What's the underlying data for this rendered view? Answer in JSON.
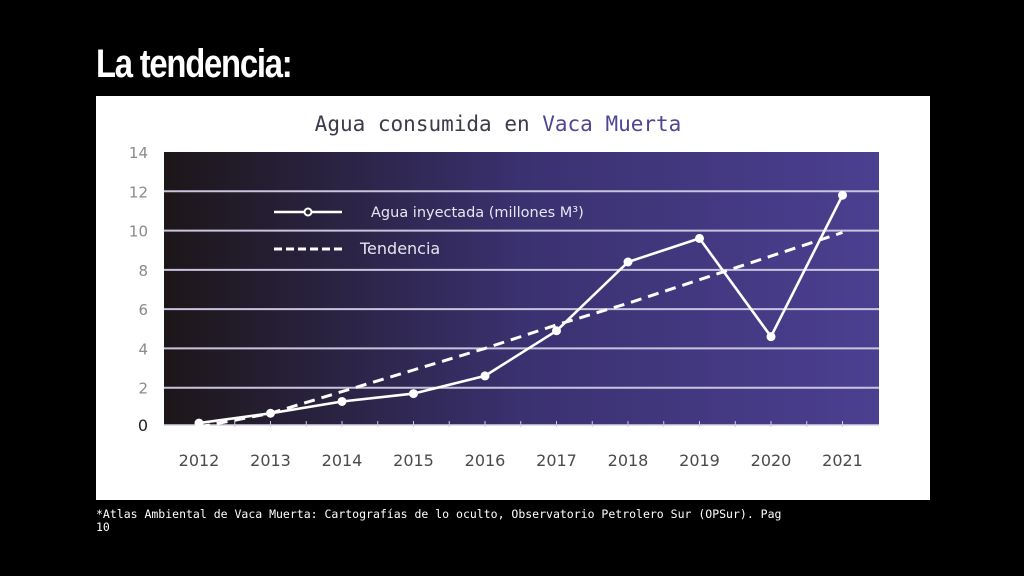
{
  "slide": {
    "title": "La tendencia:",
    "footnote": "*Atlas Ambiental de Vaca Muerta: Cartografías de lo oculto, Observatorio Petrolero Sur (OPSur). Pag\n10"
  },
  "colors": {
    "plot_gradient_start": "#1c1618",
    "plot_gradient_end": "#4b3f90",
    "line": "#ffffff",
    "grid": "#c9c4de",
    "title_dark": "#3d3a4a",
    "title_accent": "#4f4694",
    "tick_text": "#4a4a4a"
  },
  "chart_data": {
    "type": "line",
    "title": "Agua consumida en Vaca Muerta",
    "xlabel": "",
    "ylabel": "",
    "categories": [
      "2012",
      "2013",
      "2014",
      "2015",
      "2016",
      "2017",
      "2018",
      "2019",
      "2020",
      "2021"
    ],
    "series": [
      {
        "name": "Agua inyectada (millones M³)",
        "style": "solid-with-markers",
        "values": [
          0.2,
          0.7,
          1.3,
          1.7,
          2.6,
          4.9,
          8.4,
          9.6,
          4.6,
          11.8
        ]
      },
      {
        "name": "Tendencia",
        "style": "dashed",
        "values": [
          0.0,
          0.7,
          1.8,
          2.9,
          4.0,
          5.2,
          6.3,
          7.5,
          8.7,
          9.9
        ]
      }
    ],
    "yticks": [
      0,
      2,
      4,
      6,
      8,
      10,
      12,
      14
    ],
    "ylim": [
      0,
      14
    ],
    "grid": true,
    "legend": "top-left"
  }
}
